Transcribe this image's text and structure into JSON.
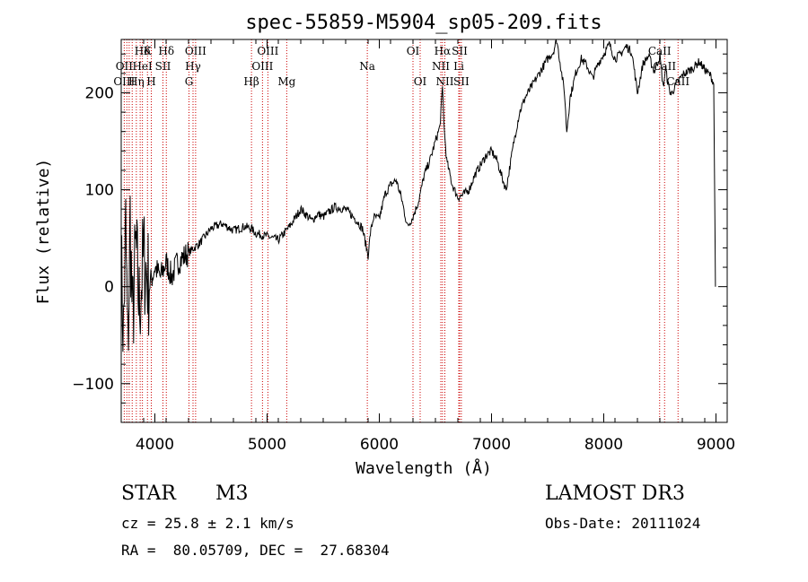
{
  "chart_data": {
    "type": "line",
    "title": "spec-55859-M5904_sp05-209.fits",
    "xlabel": "Wavelength (Å)",
    "ylabel": "Flux (relative)",
    "xlim": [
      3700,
      9100
    ],
    "ylim": [
      -140,
      255
    ],
    "xticks": [
      4000,
      5000,
      6000,
      7000,
      8000,
      9000
    ],
    "yticks": [
      -100,
      0,
      100,
      200
    ],
    "series": [
      {
        "name": "flux",
        "x": [
          3700,
          3720,
          3740,
          3760,
          3780,
          3800,
          3830,
          3860,
          3900,
          3950,
          4000,
          4050,
          4100,
          4150,
          4200,
          4250,
          4300,
          4350,
          4400,
          4500,
          4600,
          4700,
          4800,
          4860,
          4900,
          5000,
          5100,
          5200,
          5300,
          5400,
          5450,
          5500,
          5600,
          5700,
          5800,
          5850,
          5900,
          5920,
          5950,
          6000,
          6050,
          6100,
          6150,
          6200,
          6250,
          6300,
          6350,
          6400,
          6450,
          6500,
          6540,
          6563,
          6580,
          6600,
          6650,
          6700,
          6750,
          6800,
          6850,
          6900,
          6950,
          7000,
          7050,
          7100,
          7130,
          7200,
          7250,
          7300,
          7350,
          7400,
          7450,
          7500,
          7550,
          7580,
          7600,
          7650,
          7670,
          7700,
          7750,
          7800,
          7850,
          7900,
          7950,
          8000,
          8050,
          8100,
          8150,
          8200,
          8250,
          8300,
          8350,
          8400,
          8450,
          8500,
          8530,
          8550,
          8580,
          8600,
          8650,
          8700,
          8750,
          8800,
          8850,
          8900,
          8950,
          8980,
          8995
        ],
        "y": [
          20,
          -50,
          60,
          -70,
          70,
          -40,
          40,
          -20,
          30,
          0,
          20,
          10,
          25,
          10,
          25,
          30,
          35,
          40,
          45,
          60,
          65,
          58,
          62,
          60,
          55,
          52,
          48,
          62,
          80,
          68,
          75,
          72,
          82,
          80,
          68,
          60,
          32,
          55,
          72,
          70,
          95,
          105,
          110,
          90,
          62,
          72,
          88,
          115,
          130,
          150,
          165,
          205,
          160,
          130,
          105,
          92,
          95,
          100,
          115,
          125,
          135,
          140,
          130,
          110,
          100,
          150,
          180,
          195,
          205,
          215,
          225,
          235,
          242,
          255,
          240,
          200,
          160,
          195,
          220,
          235,
          228,
          215,
          230,
          240,
          250,
          235,
          240,
          248,
          242,
          200,
          230,
          238,
          222,
          238,
          205,
          225,
          205,
          198,
          210,
          218,
          222,
          226,
          232,
          224,
          218,
          210,
          0
        ]
      }
    ],
    "emission_lines": [
      {
        "label": "Hδ",
        "wl": 3889,
        "row": 0
      },
      {
        "label": "K",
        "wl": 3934,
        "row": 0
      },
      {
        "label": "Hδ",
        "wl": 4102,
        "row": 0
      },
      {
        "label": "OIII",
        "wl": 4363,
        "row": 0
      },
      {
        "label": "OIII",
        "wl": 5007,
        "row": 0
      },
      {
        "label": "OI",
        "wl": 6300,
        "row": 0
      },
      {
        "label": "Hα",
        "wl": 6563,
        "row": 0
      },
      {
        "label": "SII",
        "wl": 6716,
        "row": 0
      },
      {
        "label": "CaII",
        "wl": 8498,
        "row": 0
      },
      {
        "label": "OII",
        "wl": 3727,
        "row": 1
      },
      {
        "label": "HeI",
        "wl": 3889,
        "row": 1
      },
      {
        "label": "SII",
        "wl": 4072,
        "row": 1
      },
      {
        "label": "Hγ",
        "wl": 4340,
        "row": 1
      },
      {
        "label": "OIII",
        "wl": 4959,
        "row": 1
      },
      {
        "label": "Na",
        "wl": 5893,
        "row": 1
      },
      {
        "label": "NII",
        "wl": 6548,
        "row": 1
      },
      {
        "label": "Li",
        "wl": 6708,
        "row": 1
      },
      {
        "label": "CaII",
        "wl": 8542,
        "row": 1
      },
      {
        "label": "OIII",
        "wl": 3727,
        "row": 2
      },
      {
        "label": "Hη",
        "wl": 3835,
        "row": 2
      },
      {
        "label": "H",
        "wl": 3968,
        "row": 2
      },
      {
        "label": "G",
        "wl": 4304,
        "row": 2
      },
      {
        "label": "Hβ",
        "wl": 4861,
        "row": 2
      },
      {
        "label": "Mg",
        "wl": 5175,
        "row": 2
      },
      {
        "label": "OI",
        "wl": 6364,
        "row": 2
      },
      {
        "label": "NII",
        "wl": 6584,
        "row": 2
      },
      {
        "label": "SII",
        "wl": 6731,
        "row": 2
      },
      {
        "label": "CaII",
        "wl": 8662,
        "row": 2
      }
    ],
    "line_marker_wavelengths": [
      3727,
      3750,
      3771,
      3798,
      3835,
      3869,
      3889,
      3934,
      3968,
      4072,
      4102,
      4304,
      4340,
      4363,
      4861,
      4959,
      5007,
      5175,
      5893,
      6300,
      6364,
      6548,
      6563,
      6584,
      6708,
      6716,
      6731,
      8498,
      8542,
      8662
    ]
  },
  "info": {
    "object_class": "STAR",
    "subclass": "M3",
    "survey": "LAMOST DR3",
    "cz": "cz = 25.8 ± 2.1 km/s",
    "obs_date": "Obs-Date: 20111024",
    "coords": "RA =  80.05709, DEC =  27.68304"
  },
  "colors": {
    "marker": "#cc0000",
    "spectrum": "#000000"
  }
}
